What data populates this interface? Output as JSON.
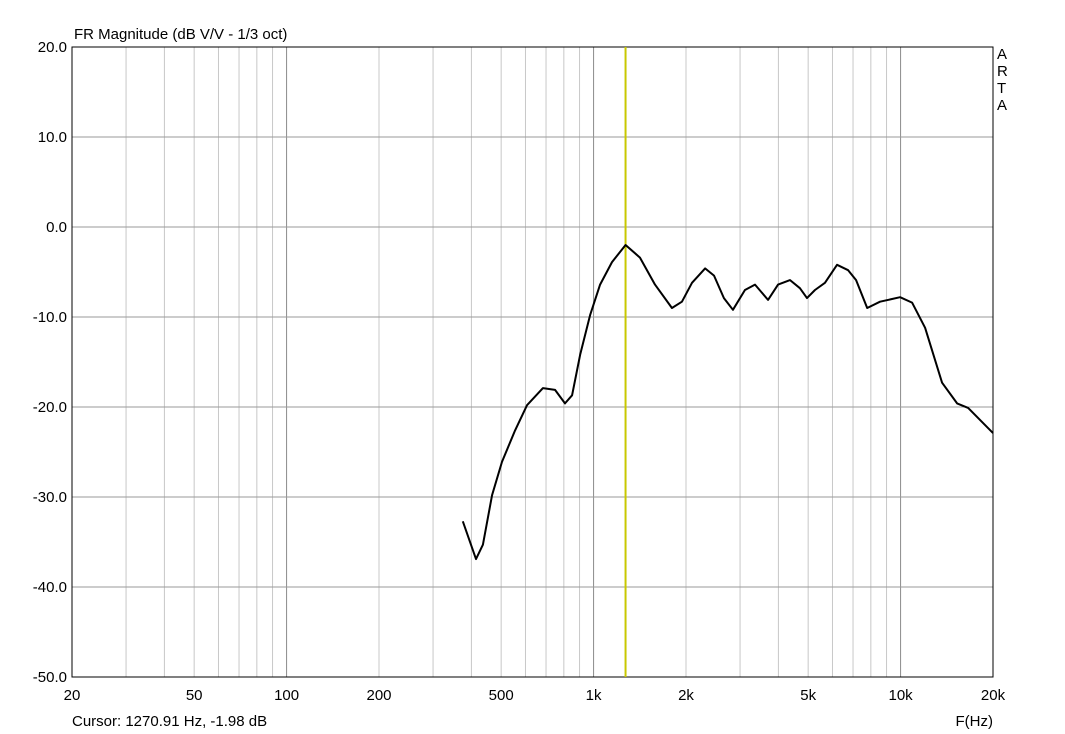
{
  "chart_data": {
    "type": "line",
    "title": "FR Magnitude (dB V/V - 1/3 oct)",
    "x_label": "F(Hz)",
    "watermark": "ARTA",
    "log_x": true,
    "grid": true,
    "xlim": [
      20,
      20000
    ],
    "ylim": [
      -50,
      20
    ],
    "xticks": [
      20,
      50,
      100,
      200,
      500,
      {
        "value": 1000,
        "label": "1k"
      },
      {
        "value": 2000,
        "label": "2k"
      },
      {
        "value": 5000,
        "label": "5k"
      },
      {
        "value": 10000,
        "label": "10k"
      },
      {
        "value": 20000,
        "label": "20k"
      }
    ],
    "xminor": [
      30,
      40,
      60,
      70,
      80,
      90,
      300,
      400,
      600,
      700,
      800,
      900,
      3000,
      4000,
      6000,
      7000,
      8000,
      9000
    ],
    "yticks": [
      {
        "value": -50,
        "label": "-50.0"
      },
      {
        "value": -40,
        "label": "-40.0"
      },
      {
        "value": -30,
        "label": "-30.0"
      },
      {
        "value": -20,
        "label": "-20.0"
      },
      {
        "value": -10,
        "label": "-10.0"
      },
      {
        "value": 0,
        "label": "0.0"
      },
      {
        "value": 10,
        "label": "10.0"
      },
      {
        "value": 20,
        "label": "20.0"
      }
    ],
    "cursor": {
      "x": 1270.91,
      "color": "#c8c800",
      "label": "Cursor: 1270.91 Hz, -1.98 dB"
    },
    "x": [
      375,
      414,
      436,
      467,
      503,
      555,
      607,
      684,
      749,
      807,
      851,
      904,
      974,
      1050,
      1148,
      1271,
      1416,
      1585,
      1800,
      1940,
      2092,
      2308,
      2468,
      2658,
      2844,
      3112,
      3356,
      3700,
      3990,
      4365,
      4700,
      4956,
      5262,
      5671,
      6209,
      6748,
      7163,
      7785,
      8571,
      9963,
      10900,
      12020,
      13650,
      15280,
      16600,
      20000
    ],
    "series": [
      {
        "name": "FR",
        "color": "#000000",
        "values": [
          -32.7,
          -36.9,
          -35.3,
          -29.8,
          -26.1,
          -22.6,
          -19.8,
          -17.9,
          -18.1,
          -19.6,
          -18.7,
          -14.2,
          -9.8,
          -6.4,
          -3.9,
          -2.0,
          -3.4,
          -6.4,
          -9.0,
          -8.3,
          -6.2,
          -4.6,
          -5.4,
          -7.9,
          -9.2,
          -7.0,
          -6.4,
          -8.1,
          -6.4,
          -5.9,
          -6.8,
          -7.9,
          -7.0,
          -6.2,
          -4.2,
          -4.8,
          -5.9,
          -9.0,
          -8.3,
          -7.8,
          -8.4,
          -11.2,
          -17.3,
          -19.6,
          -20.1,
          -22.9
        ]
      }
    ]
  }
}
